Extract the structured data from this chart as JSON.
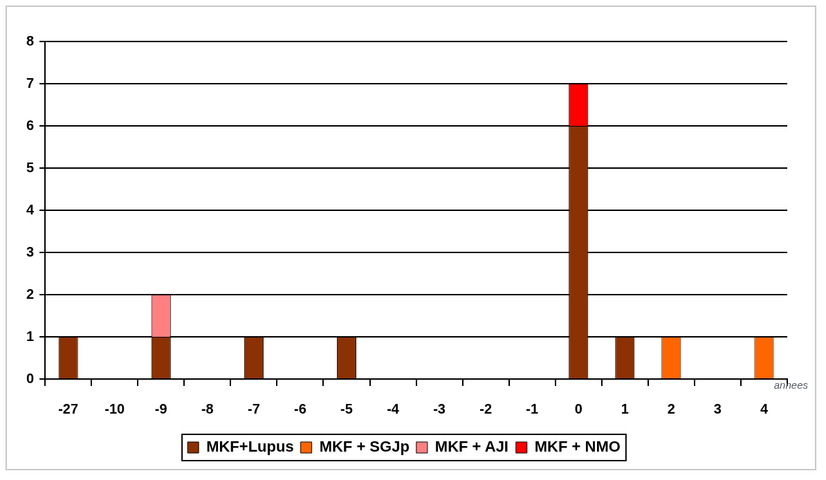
{
  "chart_data": {
    "type": "bar",
    "stacked": true,
    "xlabel": "annees",
    "categories": [
      "-27",
      "-10",
      "-9",
      "-8",
      "-7",
      "-6",
      "-5",
      "-4",
      "-3",
      "-2",
      "-1",
      "0",
      "1",
      "2",
      "3",
      "4"
    ],
    "series": [
      {
        "name": "MKF+Lupus",
        "color": "#8b3103",
        "values": [
          1,
          0,
          1,
          0,
          1,
          0,
          1,
          0,
          0,
          0,
          0,
          6,
          1,
          0,
          0,
          0
        ]
      },
      {
        "name": "MKF + SGJp",
        "color": "#ff6600",
        "values": [
          0,
          0,
          0,
          0,
          0,
          0,
          0,
          0,
          0,
          0,
          0,
          0,
          0,
          1,
          0,
          1
        ]
      },
      {
        "name": "MKF + AJI",
        "color": "#ff8080",
        "values": [
          0,
          0,
          1,
          0,
          0,
          0,
          0,
          0,
          0,
          0,
          0,
          0,
          0,
          0,
          0,
          0
        ]
      },
      {
        "name": "MKF + NMO",
        "color": "#ff0000",
        "values": [
          0,
          0,
          0,
          0,
          0,
          0,
          0,
          0,
          0,
          0,
          0,
          1,
          0,
          0,
          0,
          0
        ]
      }
    ],
    "ylim": [
      0,
      8
    ],
    "yticks": [
      0,
      1,
      2,
      3,
      4,
      5,
      6,
      7,
      8
    ],
    "grid": "y",
    "legend": "bottom"
  }
}
